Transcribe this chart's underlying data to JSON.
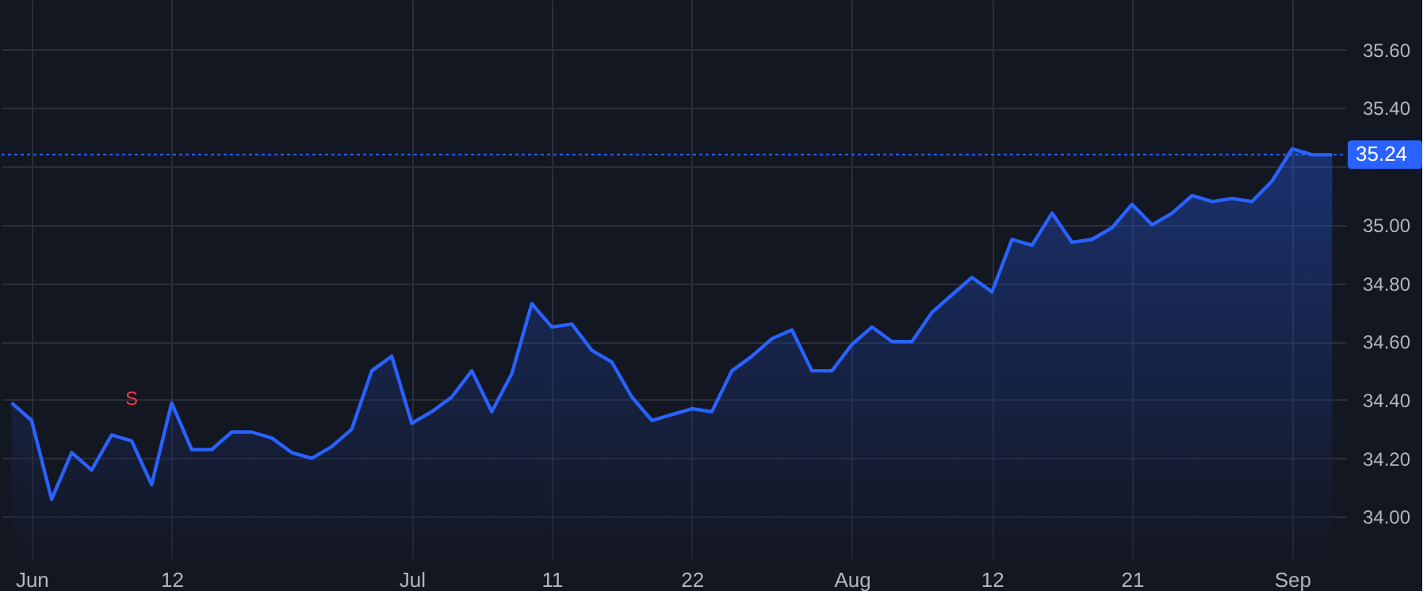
{
  "chart_data": {
    "type": "area",
    "categories": [
      null,
      "Jun",
      null,
      null,
      null,
      null,
      null,
      null,
      "12",
      null,
      null,
      null,
      null,
      null,
      null,
      null,
      null,
      null,
      null,
      null,
      "Jul",
      null,
      null,
      null,
      null,
      null,
      null,
      "11",
      null,
      null,
      null,
      null,
      null,
      null,
      "22",
      null,
      null,
      null,
      null,
      null,
      null,
      null,
      "Aug",
      null,
      null,
      null,
      null,
      null,
      null,
      "12",
      null,
      null,
      null,
      null,
      null,
      null,
      "21",
      null,
      null,
      null,
      null,
      null,
      null,
      null,
      "Sep",
      null,
      null
    ],
    "series": [
      {
        "color": "#2962ff",
        "values": [
          34.39,
          34.33,
          34.06,
          34.22,
          34.16,
          34.28,
          34.26,
          34.11,
          34.39,
          34.23,
          34.23,
          34.29,
          34.29,
          34.27,
          34.22,
          34.2,
          34.24,
          34.3,
          34.5,
          34.55,
          34.32,
          34.36,
          34.41,
          34.5,
          34.36,
          34.49,
          34.73,
          34.65,
          34.66,
          34.57,
          34.53,
          34.41,
          34.33,
          34.35,
          34.37,
          34.36,
          34.5,
          34.55,
          34.61,
          34.64,
          34.5,
          34.5,
          34.59,
          34.65,
          34.6,
          34.6,
          34.7,
          34.76,
          34.82,
          34.77,
          34.95,
          34.93,
          35.04,
          34.94,
          34.95,
          34.99,
          35.07,
          35.0,
          35.04,
          35.1,
          35.08,
          35.09,
          35.08,
          35.15,
          35.26,
          35.24,
          35.24
        ]
      }
    ],
    "ylim": [
      33.86,
      35.77
    ],
    "yticks": [
      {
        "value": 34.0,
        "label": "34.00"
      },
      {
        "value": 34.2,
        "label": "34.20"
      },
      {
        "value": 34.4,
        "label": "34.40"
      },
      {
        "value": 34.6,
        "label": "34.60"
      },
      {
        "value": 34.8,
        "label": "34.80"
      },
      {
        "value": 35.0,
        "label": "35.00"
      },
      {
        "value": 35.2,
        "label": null
      },
      {
        "value": 35.4,
        "label": "35.40"
      },
      {
        "value": 35.6,
        "label": "35.60"
      }
    ],
    "ref_lines": [
      {
        "axis": "y",
        "value": 35.24,
        "label": "35.24",
        "color": "#2962ff",
        "line_style": "dotted"
      }
    ],
    "annotations": [
      {
        "text": "S",
        "y": 34.26
      }
    ],
    "grid": true,
    "line_style": "solid",
    "marker": "none"
  }
}
